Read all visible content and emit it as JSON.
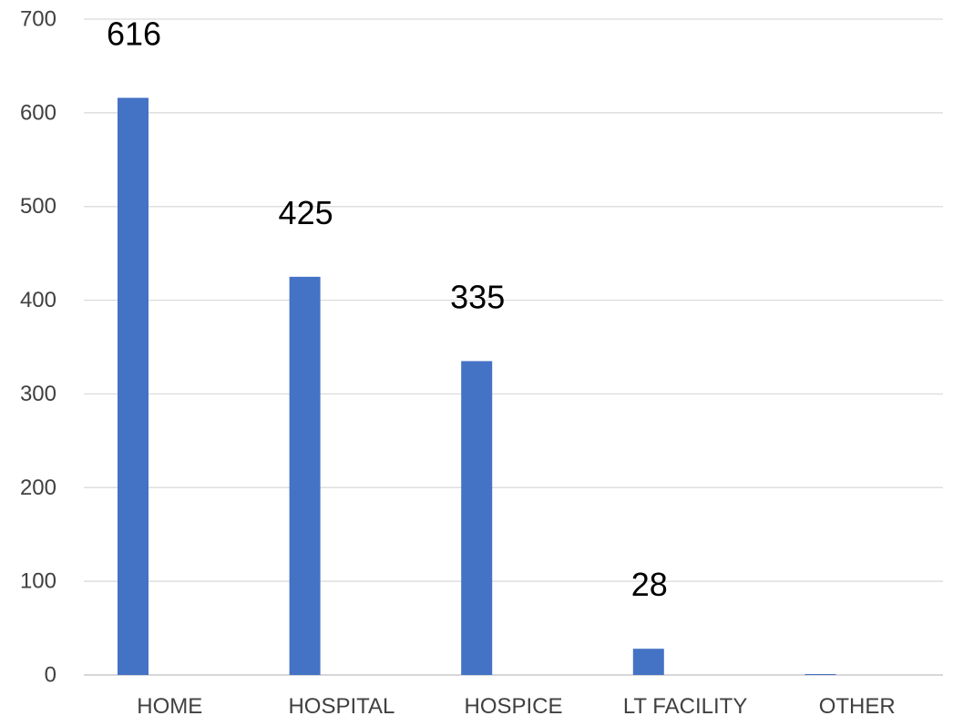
{
  "chart_data": {
    "type": "bar",
    "categories": [
      "HOME",
      "HOSPITAL",
      "HOSPICE",
      "LT FACILITY",
      "OTHER"
    ],
    "values": [
      616,
      425,
      335,
      28,
      1
    ],
    "data_labels": [
      "616",
      "425",
      "335",
      "28",
      ""
    ],
    "ylim": [
      0,
      700
    ],
    "yticks": [
      0,
      100,
      200,
      300,
      400,
      500,
      600,
      700
    ],
    "grid": true,
    "legend": "none",
    "bar_color": "#4472C4"
  }
}
